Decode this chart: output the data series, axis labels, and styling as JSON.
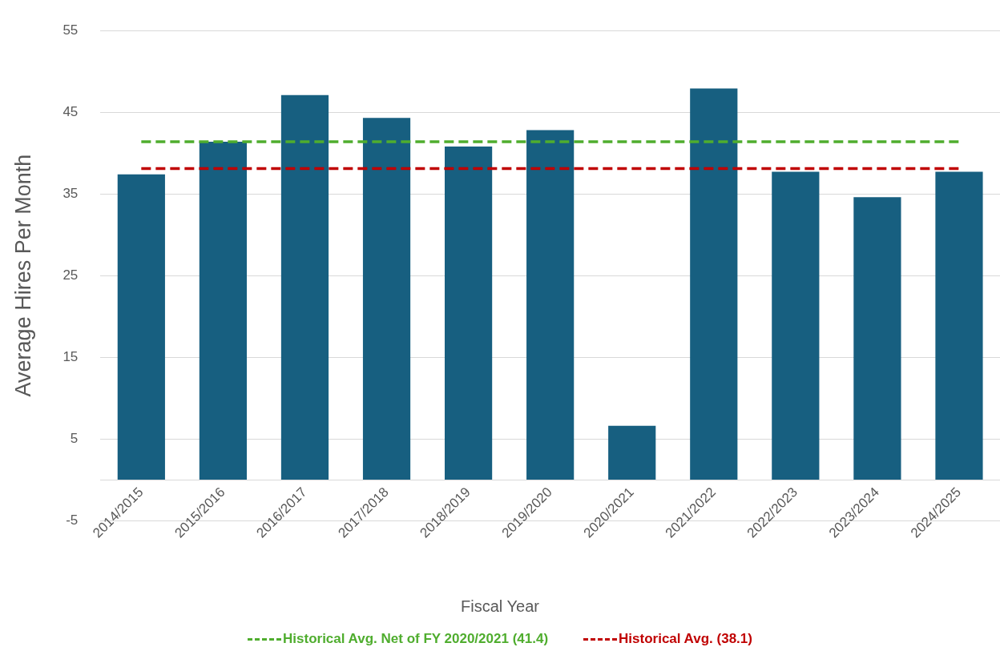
{
  "chart_data": {
    "type": "bar",
    "xlabel": "Fiscal Year",
    "ylabel": "Average Hires Per Month",
    "categories": [
      "2014/2015",
      "2015/2016",
      "2016/2017",
      "2017/2018",
      "2018/2019",
      "2019/2020",
      "2020/2021",
      "2021/2022",
      "2022/2023",
      "2023/2024",
      "2024/2025"
    ],
    "values": [
      37.4,
      41.4,
      47.1,
      44.3,
      40.8,
      42.8,
      6.6,
      47.9,
      37.7,
      34.6,
      37.7
    ],
    "color": "#175f80",
    "ylim": [
      -5,
      55
    ],
    "yticks": [
      -5,
      5,
      15,
      25,
      35,
      45,
      55
    ],
    "grid": "y",
    "legend": "bottom",
    "ref_lines": [
      {
        "axis": "y",
        "value": 41.4,
        "label": "Historical Avg. Net of FY 2020/2021 (41.4)",
        "color": "#4fad2e",
        "line_style": "dashed"
      },
      {
        "axis": "y",
        "value": 38.1,
        "label": "Historical Avg. (38.1)",
        "color": "#c00000",
        "line_style": "dashed"
      }
    ]
  }
}
